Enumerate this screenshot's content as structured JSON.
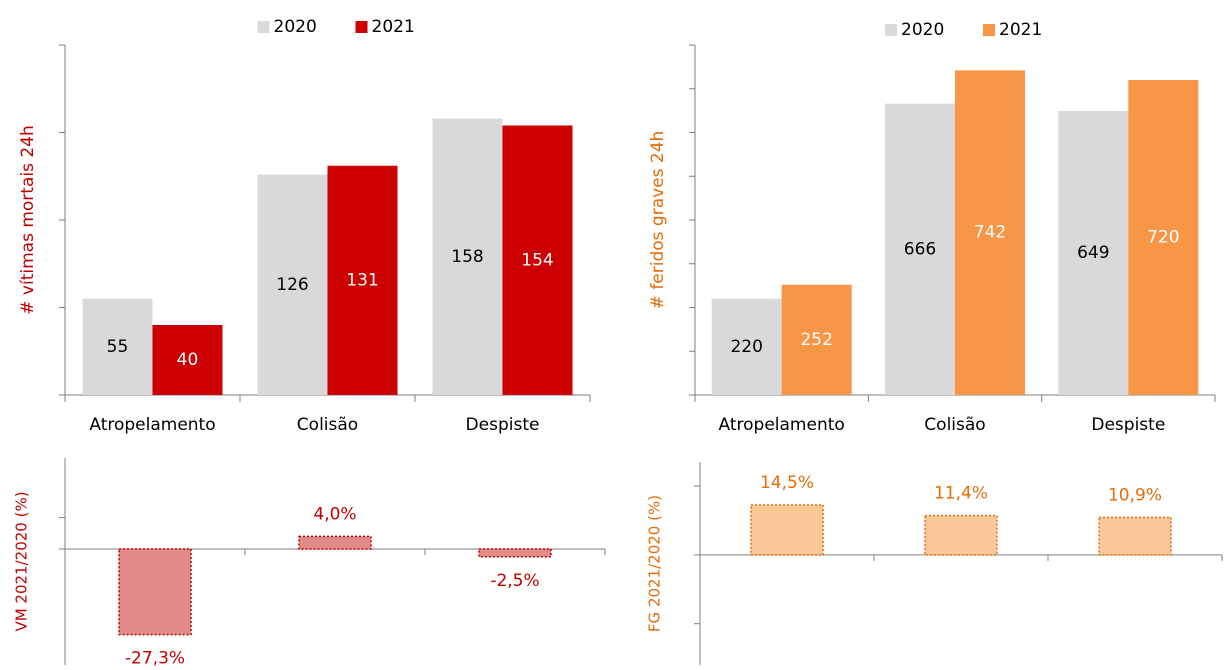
{
  "chart_data": [
    {
      "type": "bar",
      "y_label": "# vítimas mortais 24h",
      "y_label_color": "#c00000",
      "categories": [
        "Atropelamento",
        "Colisão",
        "Despiste"
      ],
      "series": [
        {
          "name": "2020",
          "color": "#d9d9d9",
          "label_color": "#000000",
          "values": [
            55,
            126,
            158
          ]
        },
        {
          "name": "2021",
          "color": "#cc0000",
          "label_color": "#ffffff",
          "values": [
            40,
            131,
            154
          ]
        }
      ],
      "ylim": [
        0,
        200
      ],
      "yticks": [
        0,
        50,
        100,
        150,
        200
      ]
    },
    {
      "type": "bar",
      "y_label": "# feridos graves 24h",
      "y_label_color": "#e46c0a",
      "categories": [
        "Atropelamento",
        "Colisão",
        "Despiste"
      ],
      "series": [
        {
          "name": "2020",
          "color": "#d9d9d9",
          "label_color": "#000000",
          "values": [
            220,
            666,
            649
          ]
        },
        {
          "name": "2021",
          "color": "#f79646",
          "label_color": "#ffffff",
          "values": [
            252,
            742,
            720
          ]
        }
      ],
      "ylim": [
        0,
        800
      ],
      "yticks": [
        0,
        100,
        200,
        300,
        400,
        500,
        600,
        700,
        800
      ]
    },
    {
      "type": "change",
      "y_label": "VM 2021/2020 (%)",
      "y_label_color": "#c00000",
      "values": [
        -27.3,
        4.0,
        -2.5
      ],
      "value_labels": [
        "-27,3%",
        "4,0%",
        "-2,5%"
      ],
      "color": "#e08a8a",
      "edge_color": "#c00000",
      "label_color": "#c00000",
      "ylim": [
        -37,
        29
      ],
      "yticks": [
        0,
        10
      ]
    },
    {
      "type": "change",
      "y_label": "FG 2021/2020 (%)",
      "y_label_color": "#e46c0a",
      "values": [
        14.5,
        11.4,
        10.9
      ],
      "value_labels": [
        "14,5%",
        "11,4%",
        "10,9%"
      ],
      "color": "#fac896",
      "edge_color": "#e46c0a",
      "label_color": "#e46c0a",
      "ylim": [
        -32,
        27
      ],
      "yticks": [
        -20,
        0,
        20
      ]
    }
  ]
}
